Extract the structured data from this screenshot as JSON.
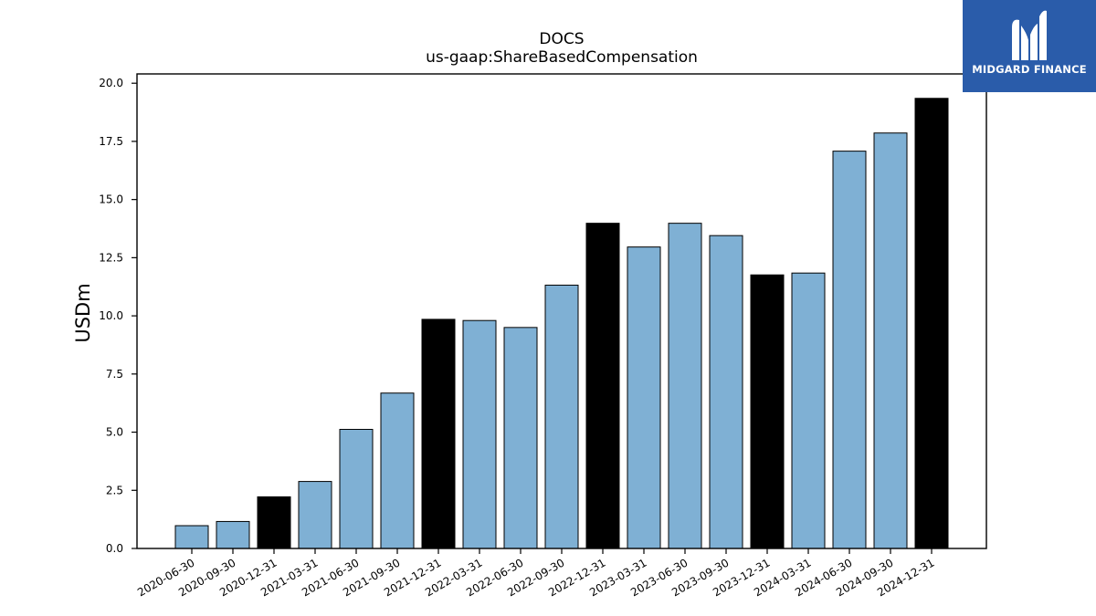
{
  "chart_data": {
    "type": "bar",
    "title": "DOCS",
    "subtitle": "us-gaap:ShareBasedCompensation",
    "ylabel": "USDm",
    "xlabel": "",
    "ylim": [
      0,
      20.4
    ],
    "yticks": [
      "0.0",
      "2.5",
      "5.0",
      "7.5",
      "10.0",
      "12.5",
      "15.0",
      "17.5",
      "20.0"
    ],
    "categories": [
      "2020-06-30",
      "2020-09-30",
      "2020-12-31",
      "2021-03-31",
      "2021-06-30",
      "2021-09-30",
      "2021-12-31",
      "2022-03-31",
      "2022-06-30",
      "2022-09-30",
      "2022-12-31",
      "2023-03-31",
      "2023-06-30",
      "2023-09-30",
      "2023-12-31",
      "2024-03-31",
      "2024-06-30",
      "2024-09-30",
      "2024-12-31"
    ],
    "values": [
      0.98,
      1.16,
      2.22,
      2.88,
      5.12,
      6.68,
      9.85,
      9.8,
      9.5,
      11.32,
      13.98,
      12.96,
      13.98,
      13.45,
      11.76,
      11.84,
      17.08,
      17.86,
      19.35
    ],
    "bar_colors": [
      "#7fb0d4",
      "#7fb0d4",
      "#000000",
      "#7fb0d4",
      "#7fb0d4",
      "#7fb0d4",
      "#000000",
      "#7fb0d4",
      "#7fb0d4",
      "#7fb0d4",
      "#000000",
      "#7fb0d4",
      "#7fb0d4",
      "#7fb0d4",
      "#000000",
      "#7fb0d4",
      "#7fb0d4",
      "#7fb0d4",
      "#000000"
    ],
    "grid": false,
    "legend": "none"
  },
  "logo": {
    "text": "MIDGARD FINANCE",
    "background": "#2a5caa"
  }
}
